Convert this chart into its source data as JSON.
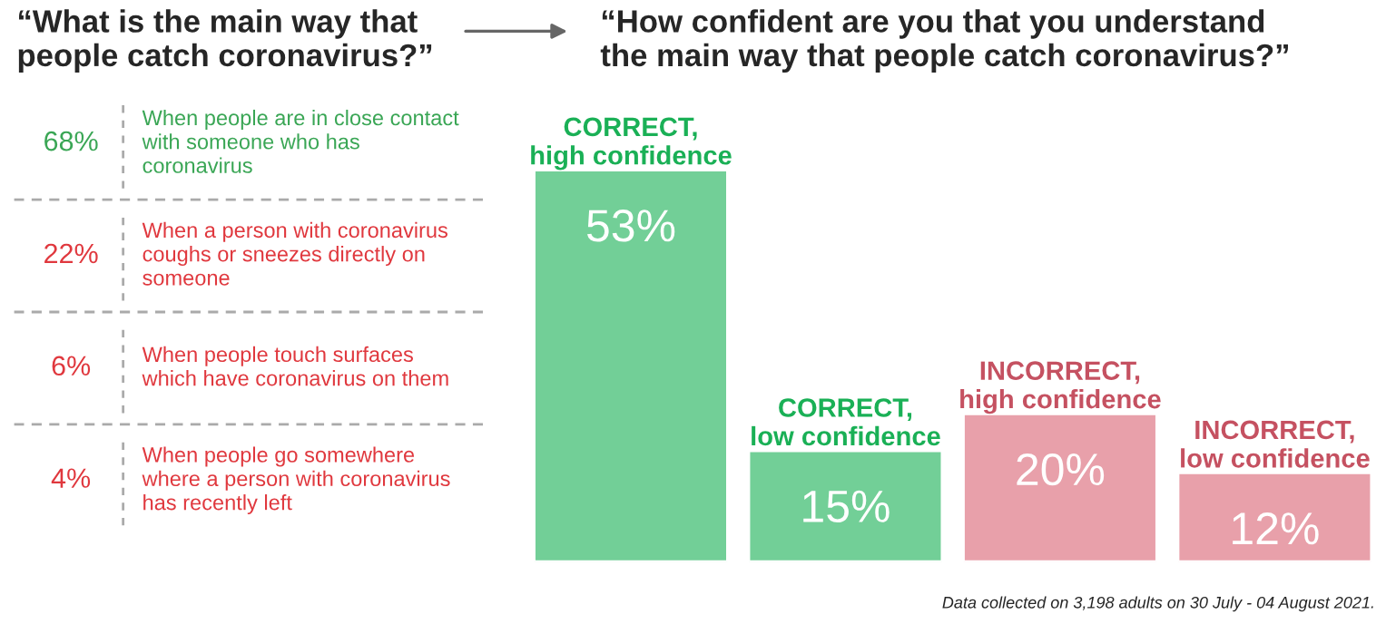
{
  "chart_data": [
    {
      "type": "other",
      "title": "“What is the main way that\npeople catch coronavirus?”",
      "categories": [
        "When people are in close contact\nwith someone who has\ncoronavirus",
        "When a person with coronavirus\ncoughs or sneezes directly on\nsomeone",
        "When people touch surfaces\nwhich have coronavirus on them",
        "When people go somewhere\nwhere a person with coronavirus\nhas recently left"
      ],
      "values": [
        68,
        22,
        6,
        4
      ],
      "colors": [
        "#3aa655",
        "#e0383e",
        "#e0383e",
        "#e0383e"
      ],
      "value_labels": [
        "68%",
        "22%",
        "6%",
        "4%"
      ]
    },
    {
      "type": "bar",
      "title": "“How confident are you that you understand\nthe main way that people catch coronavirus?”",
      "categories": [
        "CORRECT,\nhigh confidence",
        "CORRECT,\nlow confidence",
        "INCORRECT,\nhigh confidence",
        "INCORRECT,\nlow confidence"
      ],
      "values": [
        53,
        15,
        20,
        12
      ],
      "colors": [
        "#72cf97",
        "#72cf97",
        "#e8a0aa",
        "#e8a0aa"
      ],
      "value_labels": [
        "53%",
        "15%",
        "20%",
        "12%"
      ],
      "tick_labels": false,
      "annotations": [
        "Data collected on 3,198 adults on 30 July - 04 August 2021."
      ]
    }
  ]
}
